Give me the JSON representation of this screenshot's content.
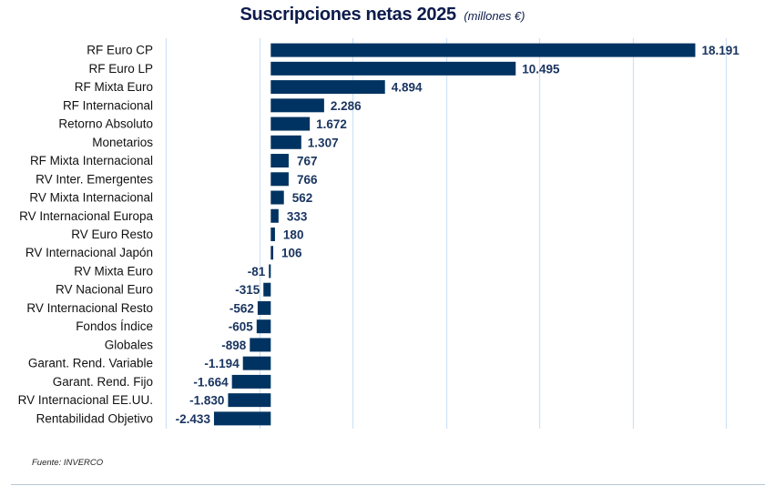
{
  "chart_data": {
    "type": "bar",
    "orientation": "horizontal",
    "title": "Suscripciones netas 2025",
    "subtitle": "(millones €)",
    "xlabel": "",
    "ylabel": "",
    "xlim": [
      -4500,
      19500
    ],
    "grid_step": 4000,
    "grid": true,
    "bar_color": "#003361",
    "label_color": "#1a3560",
    "grid_color": "#cfe3f5",
    "categories": [
      "RF Euro CP",
      "RF Euro LP",
      "RF Mixta Euro",
      "RF Internacional",
      "Retorno Absoluto",
      "Monetarios",
      "RF Mixta Internacional",
      "RV Inter. Emergentes",
      "RV Mixta Internacional",
      "RV Internacional Europa",
      "RV Euro Resto",
      "RV Internacional Japón",
      "RV Mixta Euro",
      "RV Nacional Euro",
      "RV Internacional Resto",
      "Fondos Índice",
      "Globales",
      "Garant. Rend. Variable",
      "Garant. Rend. Fijo",
      "RV Internacional EE.UU.",
      "Rentabilidad Objetivo"
    ],
    "values": [
      18191,
      10495,
      4894,
      2286,
      1672,
      1307,
      767,
      766,
      562,
      333,
      180,
      106,
      -81,
      -315,
      -562,
      -605,
      -898,
      -1194,
      -1664,
      -1830,
      -2433
    ],
    "value_labels": [
      "18.191",
      "10.495",
      "4.894",
      "2.286",
      "1.672",
      "1.307",
      "767",
      "766",
      "562",
      "333",
      "180",
      "106",
      "-81",
      "-315",
      "-562",
      "-605",
      "-898",
      "-1.194",
      "-1.664",
      "-1.830",
      "-2.433"
    ]
  },
  "source": "Fuente: INVERCO"
}
